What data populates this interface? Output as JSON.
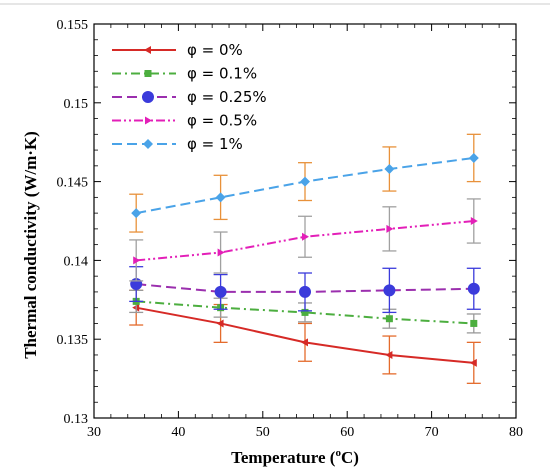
{
  "chart_data": {
    "type": "line",
    "title": "",
    "xlabel": "Temperature (°C)",
    "ylabel": "Thermal conductivity (W/m·K)",
    "xlabel_parts": {
      "pre": "Temperature (",
      "sup": "o",
      "post": "C)"
    },
    "xlim": [
      30,
      80
    ],
    "ylim": [
      0.13,
      0.155
    ],
    "x_ticks": [
      30,
      40,
      50,
      60,
      70,
      80
    ],
    "y_ticks": [
      0.13,
      0.135,
      0.14,
      0.145,
      0.15,
      0.155
    ],
    "x_tick_labels": [
      "30",
      "40",
      "50",
      "60",
      "70",
      "80"
    ],
    "y_tick_labels": [
      "0.13",
      "0.135",
      "0.14",
      "0.145",
      "0.15",
      "0.155"
    ],
    "legend_position": "top-left",
    "grid": false,
    "x": [
      35,
      45,
      55,
      65,
      75
    ],
    "series": [
      {
        "name": "φ = 0%",
        "color": "#d62a26",
        "marker": "triangle-left",
        "dash": "solid",
        "values": [
          0.137,
          0.136,
          0.1348,
          0.134,
          0.1335
        ],
        "error": [
          0.0011,
          0.0012,
          0.0012,
          0.0012,
          0.0013
        ],
        "error_color": "#e46b2c"
      },
      {
        "name": "φ = 0.1%",
        "color": "#4cae3f",
        "marker": "square",
        "dash": "dashdot",
        "values": [
          0.1374,
          0.137,
          0.1367,
          0.1363,
          0.136
        ],
        "error": [
          0.0007,
          0.0006,
          0.0006,
          0.0006,
          0.0006
        ],
        "error_color": "#999999"
      },
      {
        "name": "φ = 0.25%",
        "color": "#9b2fae",
        "marker": "circle",
        "dash": "dash",
        "values": [
          0.1385,
          0.138,
          0.138,
          0.1381,
          0.1382
        ],
        "error": [
          0.0011,
          0.0011,
          0.0012,
          0.0014,
          0.0013
        ],
        "error_color": "#3b3bdb"
      },
      {
        "name": "φ = 0.5%",
        "color": "#e31fb8",
        "marker": "triangle-right",
        "dash": "dashdotdot",
        "values": [
          0.14,
          0.1405,
          0.1415,
          0.142,
          0.1425
        ],
        "error": [
          0.0013,
          0.0013,
          0.0013,
          0.0014,
          0.0014
        ],
        "error_color": "#a0a0a0"
      },
      {
        "name": "φ = 1%",
        "color": "#4aa3e8",
        "marker": "diamond",
        "dash": "dash",
        "values": [
          0.143,
          0.144,
          0.145,
          0.1458,
          0.1465
        ],
        "error": [
          0.0012,
          0.0014,
          0.0012,
          0.0014,
          0.0015
        ],
        "error_color": "#e8913a"
      }
    ]
  }
}
